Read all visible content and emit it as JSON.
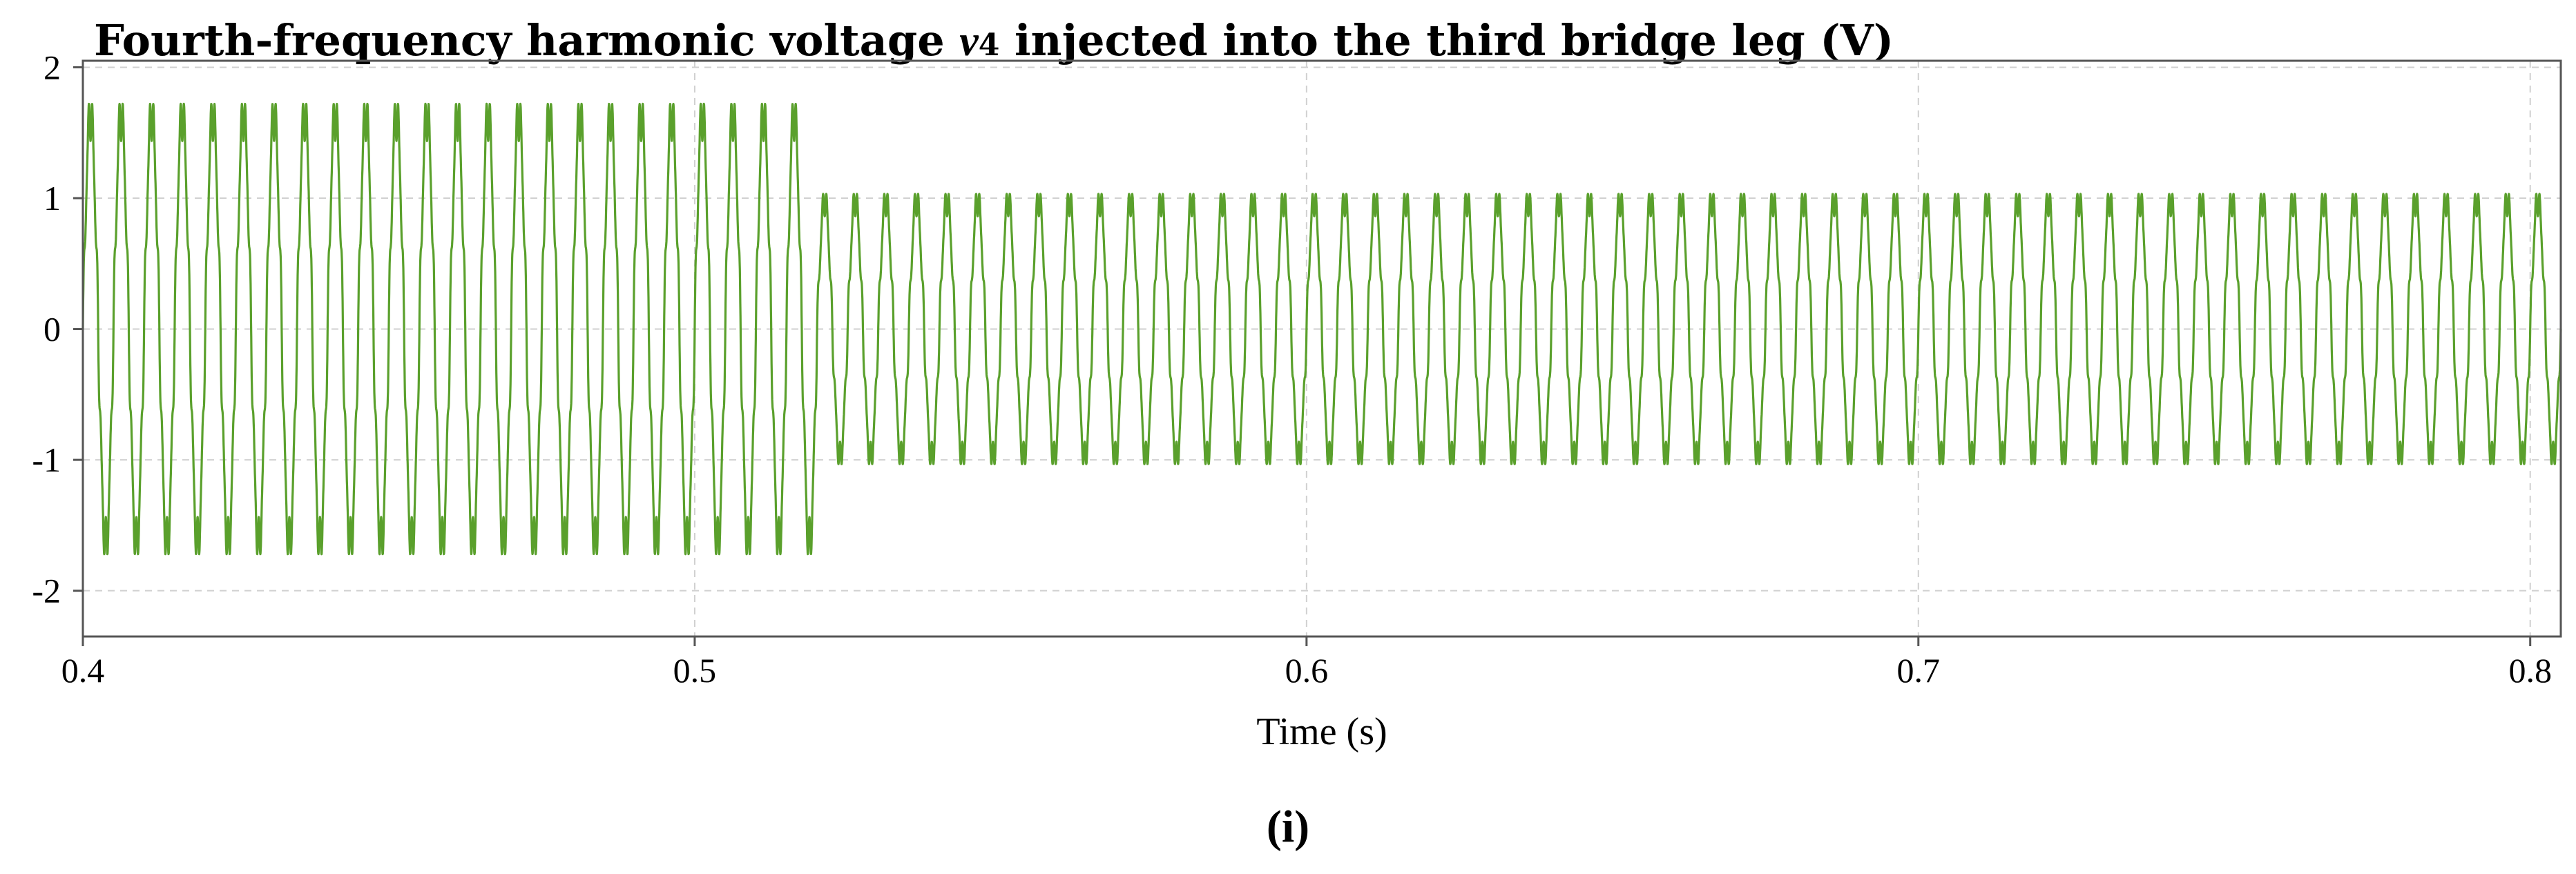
{
  "title": {
    "prefix": "Fourth-frequency harmonic voltage",
    "symbol": "v",
    "subscript": "4",
    "suffix": "injected into the third bridge leg (V)"
  },
  "panel_label": "(i)",
  "chart_data": {
    "type": "line",
    "title": "Fourth-frequency harmonic voltage v4 injected into the third bridge leg (V)",
    "xlabel": "Time (s)",
    "ylabel": "",
    "xlim": [
      0.4,
      0.805
    ],
    "ylim": [
      -2.35,
      2.05
    ],
    "xticks": [
      0.4,
      0.5,
      0.6,
      0.7,
      0.8
    ],
    "xtick_labels": [
      "0.4",
      "0.5",
      "0.6",
      "0.7",
      "0.8"
    ],
    "yticks": [
      -2,
      -1,
      0,
      1,
      2
    ],
    "ytick_labels": [
      "-2",
      "-1",
      "0",
      "1",
      "2"
    ],
    "grid": true,
    "line_color": "#5aa02c",
    "series": [
      {
        "frequency_hz": 200,
        "segments": [
          {
            "t_start": 0.4,
            "t_end": 0.52,
            "amplitude": 1.75
          },
          {
            "t_start": 0.52,
            "t_end": 0.805,
            "amplitude": 1.05
          }
        ]
      }
    ]
  }
}
